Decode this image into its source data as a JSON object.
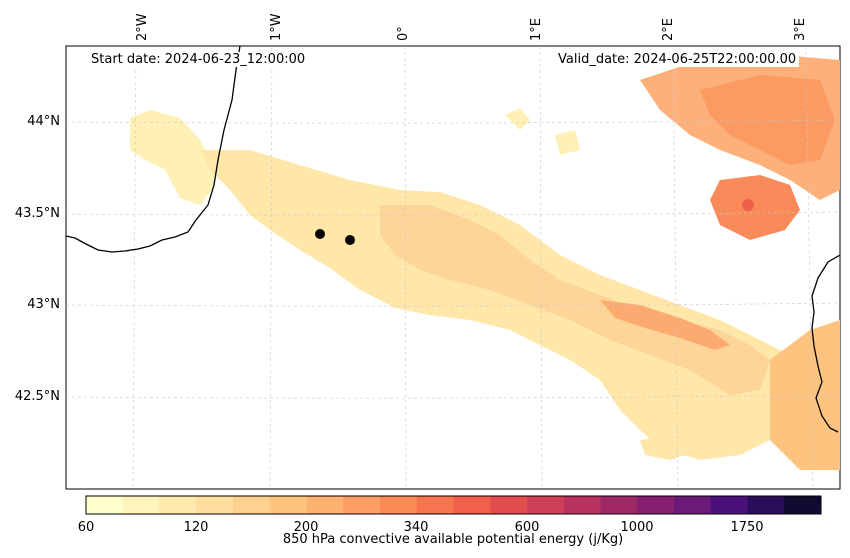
{
  "annotations": {
    "start_date": "Start date: 2024-06-23_12:00:00",
    "valid_date": "Valid_date: 2024-06-25T22:00:00.00"
  },
  "longitude_labels": [
    "2°W",
    "1°W",
    "0°",
    "1°E",
    "2°E",
    "3°E"
  ],
  "latitude_labels": [
    "44°N",
    "43.5°N",
    "43°N",
    "42.5°N"
  ],
  "colorbar": {
    "label": "850 hPa convective available potential energy (j/Kg)",
    "tick_labels": [
      "60",
      "120",
      "200",
      "340",
      "600",
      "1000",
      "1750"
    ],
    "colors": [
      "#ffffcc",
      "#fff4bc",
      "#ffe9ad",
      "#fedd9f",
      "#fed18f",
      "#fec47f",
      "#feb26f",
      "#fd9e62",
      "#fb8a57",
      "#f7754e",
      "#f0604a",
      "#e24e4e",
      "#cf4057",
      "#b8335f",
      "#9e2966",
      "#852170",
      "#6a1b78",
      "#4a1278",
      "#2a0e5a",
      "#120b30"
    ]
  },
  "markers": [
    {
      "name": "point-1"
    },
    {
      "name": "point-2"
    }
  ]
}
